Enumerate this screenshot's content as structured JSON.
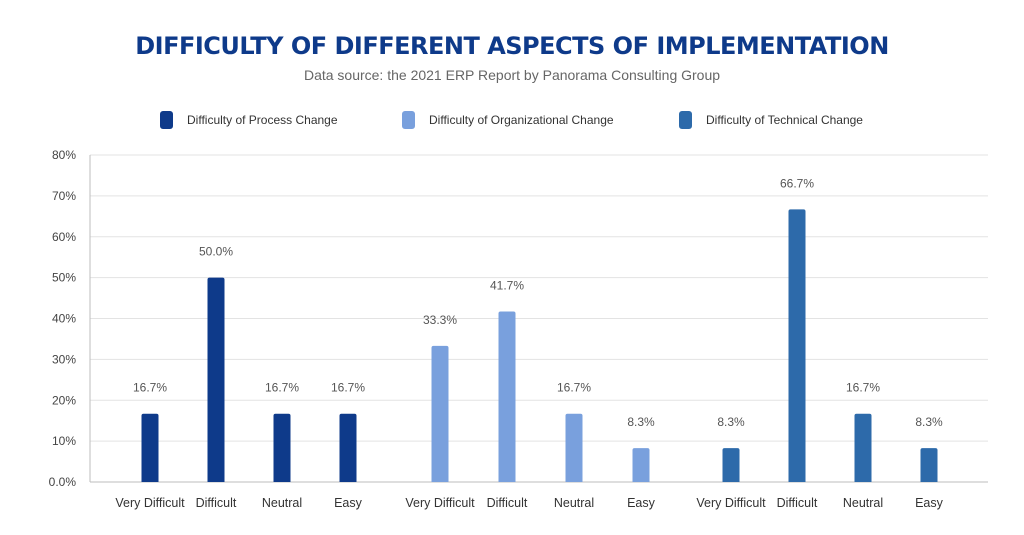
{
  "chart_data": {
    "type": "bar",
    "title": "DIFFICULTY OF DIFFERENT ASPECTS OF IMPLEMENTATION",
    "subtitle": "Data source: the 2021 ERP Report by Panorama Consulting Group",
    "categories": [
      "Very Difficult",
      "Difficult",
      "Neutral",
      "Easy"
    ],
    "series": [
      {
        "name": "Difficulty of Process Change",
        "color": "#0e3a8a",
        "values": [
          16.7,
          50.0,
          16.7,
          16.7
        ]
      },
      {
        "name": "Difficulty of Organizational Change",
        "color": "#79a0dd",
        "values": [
          33.3,
          41.7,
          16.7,
          8.3
        ]
      },
      {
        "name": "Difficulty of Technical Change",
        "color": "#2d6aaa",
        "values": [
          8.3,
          66.7,
          16.7,
          8.3
        ]
      }
    ],
    "data_labels": [
      [
        "16.7%",
        "50.0%",
        "16.7%",
        "16.7%"
      ],
      [
        "33.3%",
        "41.7%",
        "16.7%",
        "8.3%"
      ],
      [
        "8.3%",
        "66.7%",
        "16.7%",
        "8.3%"
      ]
    ],
    "y_ticks": [
      "0.0%",
      "10%",
      "20%",
      "30%",
      "40%",
      "50%",
      "60%",
      "70%",
      "80%"
    ],
    "ylim": [
      0,
      80
    ],
    "grid": true,
    "legend": "top"
  }
}
